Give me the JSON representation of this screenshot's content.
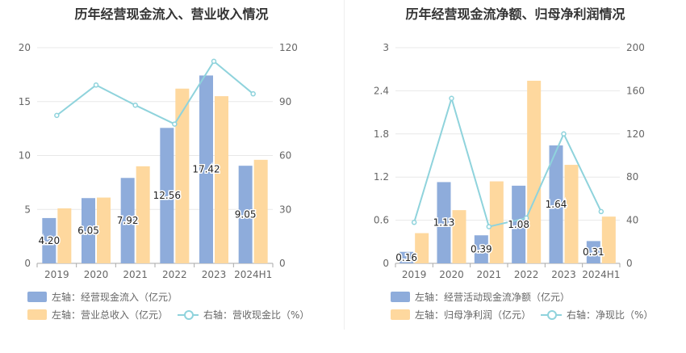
{
  "colors": {
    "bar1": "#8eacdb",
    "bar2": "#fed89e",
    "line": "#8fd3dc",
    "grid": "#e8e8e8",
    "axis": "#aaaaaa"
  },
  "chart_data": [
    {
      "type": "bar",
      "title": "历年经营现金流入、营业收入情况",
      "categories": [
        "2019",
        "2020",
        "2021",
        "2022",
        "2023",
        "2024H1"
      ],
      "series": [
        {
          "name": "左轴：经营现金流入（亿元）",
          "axis": "left",
          "values": [
            4.2,
            6.05,
            7.92,
            12.56,
            17.42,
            9.05
          ],
          "labels": [
            "4.20",
            "6.05",
            "7.92",
            "12.56",
            "17.42",
            "9.05"
          ]
        },
        {
          "name": "左轴：营业总收入（亿元）",
          "axis": "left",
          "values": [
            5.1,
            6.1,
            9.0,
            16.2,
            15.5,
            9.6
          ]
        },
        {
          "name": "右轴：营收现金比（%）",
          "axis": "right",
          "type": "line",
          "values": [
            82.3,
            99.2,
            88.0,
            77.5,
            112.4,
            94.3
          ]
        }
      ],
      "yleft": {
        "min": 0,
        "max": 20,
        "ticks": [
          "0",
          "5",
          "10",
          "15",
          "20"
        ]
      },
      "yright": {
        "min": 0,
        "max": 120,
        "ticks": [
          "0",
          "30",
          "60",
          "90",
          "120"
        ]
      },
      "legend": {
        "placement": "bottom"
      }
    },
    {
      "type": "bar",
      "title": "历年经营现金流净额、归母净利润情况",
      "categories": [
        "2019",
        "2020",
        "2021",
        "2022",
        "2023",
        "2024H1"
      ],
      "series": [
        {
          "name": "左轴：经营活动现金流净额（亿元）",
          "axis": "left",
          "values": [
            0.16,
            1.13,
            0.39,
            1.08,
            1.64,
            0.31
          ],
          "labels": [
            "0.16",
            "1.13",
            "0.39",
            "1.08",
            "1.64",
            "0.31"
          ]
        },
        {
          "name": "左轴：归母净利润（亿元）",
          "axis": "left",
          "values": [
            0.42,
            0.74,
            1.14,
            2.54,
            1.37,
            0.65
          ]
        },
        {
          "name": "右轴：净现比（%）",
          "axis": "right",
          "type": "line",
          "values": [
            38,
            153,
            34,
            42,
            120,
            48
          ]
        }
      ],
      "yleft": {
        "min": 0,
        "max": 3,
        "ticks": [
          "0",
          "0.6",
          "1.2",
          "1.8",
          "2.4",
          "3"
        ]
      },
      "yright": {
        "min": 0,
        "max": 200,
        "ticks": [
          "0",
          "40",
          "80",
          "120",
          "160",
          "200"
        ]
      },
      "legend": {
        "placement": "bottom"
      }
    }
  ]
}
